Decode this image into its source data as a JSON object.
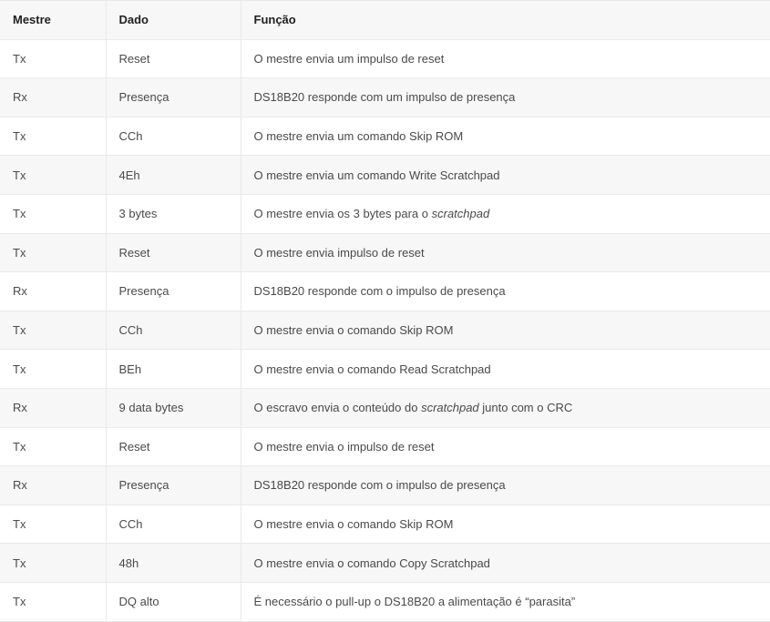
{
  "table": {
    "columns": [
      {
        "key": "mestre",
        "label": "Mestre"
      },
      {
        "key": "dado",
        "label": "Dado"
      },
      {
        "key": "funcao",
        "label": "Função"
      }
    ],
    "rows": [
      {
        "mestre": "Tx",
        "dado": "Reset",
        "funcao": [
          {
            "t": "O mestre envia um impulso de reset"
          }
        ]
      },
      {
        "mestre": "Rx",
        "dado": "Presença",
        "funcao": [
          {
            "t": "DS18B20 responde com um impulso de presença"
          }
        ]
      },
      {
        "mestre": "Tx",
        "dado": "CCh",
        "funcao": [
          {
            "t": "O mestre envia um comando Skip ROM"
          }
        ]
      },
      {
        "mestre": "Tx",
        "dado": "4Eh",
        "funcao": [
          {
            "t": "O mestre envia um comando Write Scratchpad"
          }
        ]
      },
      {
        "mestre": "Tx",
        "dado": "3 bytes",
        "funcao": [
          {
            "t": "O mestre envia os 3 bytes para o "
          },
          {
            "t": "scratchpad",
            "italic": true
          }
        ]
      },
      {
        "mestre": "Tx",
        "dado": "Reset",
        "funcao": [
          {
            "t": "O mestre envia impulso de reset"
          }
        ]
      },
      {
        "mestre": "Rx",
        "dado": "Presença",
        "funcao": [
          {
            "t": "DS18B20 responde com o impulso de presença"
          }
        ]
      },
      {
        "mestre": "Tx",
        "dado": "CCh",
        "funcao": [
          {
            "t": "O mestre envia o comando Skip ROM"
          }
        ]
      },
      {
        "mestre": "Tx",
        "dado": "BEh",
        "funcao": [
          {
            "t": "O mestre envia o comando Read Scratchpad"
          }
        ]
      },
      {
        "mestre": "Rx",
        "dado": "9 data bytes",
        "funcao": [
          {
            "t": "O escravo envia o conteúdo do "
          },
          {
            "t": "scratchpad",
            "italic": true
          },
          {
            "t": " junto com o CRC"
          }
        ]
      },
      {
        "mestre": "Tx",
        "dado": "Reset",
        "funcao": [
          {
            "t": "O mestre envia o impulso de reset"
          }
        ]
      },
      {
        "mestre": "Rx",
        "dado": "Presença",
        "funcao": [
          {
            "t": "DS18B20 responde com o impulso de presença"
          }
        ]
      },
      {
        "mestre": "Tx",
        "dado": "CCh",
        "funcao": [
          {
            "t": "O mestre envia o comando Skip ROM"
          }
        ]
      },
      {
        "mestre": "Tx",
        "dado": "48h",
        "funcao": [
          {
            "t": "O mestre envia o comando Copy Scratchpad"
          }
        ]
      },
      {
        "mestre": "Tx",
        "dado": "DQ alto",
        "funcao": [
          {
            "t": "É necessário o pull-up o DS18B20 a alimentação é “parasita”"
          }
        ]
      }
    ],
    "colors": {
      "stripe_background": "#f7f7f7",
      "row_background": "#ffffff",
      "border": "#e9e9e9",
      "header_text": "#212121",
      "body_text": "#4a4a4a"
    }
  }
}
